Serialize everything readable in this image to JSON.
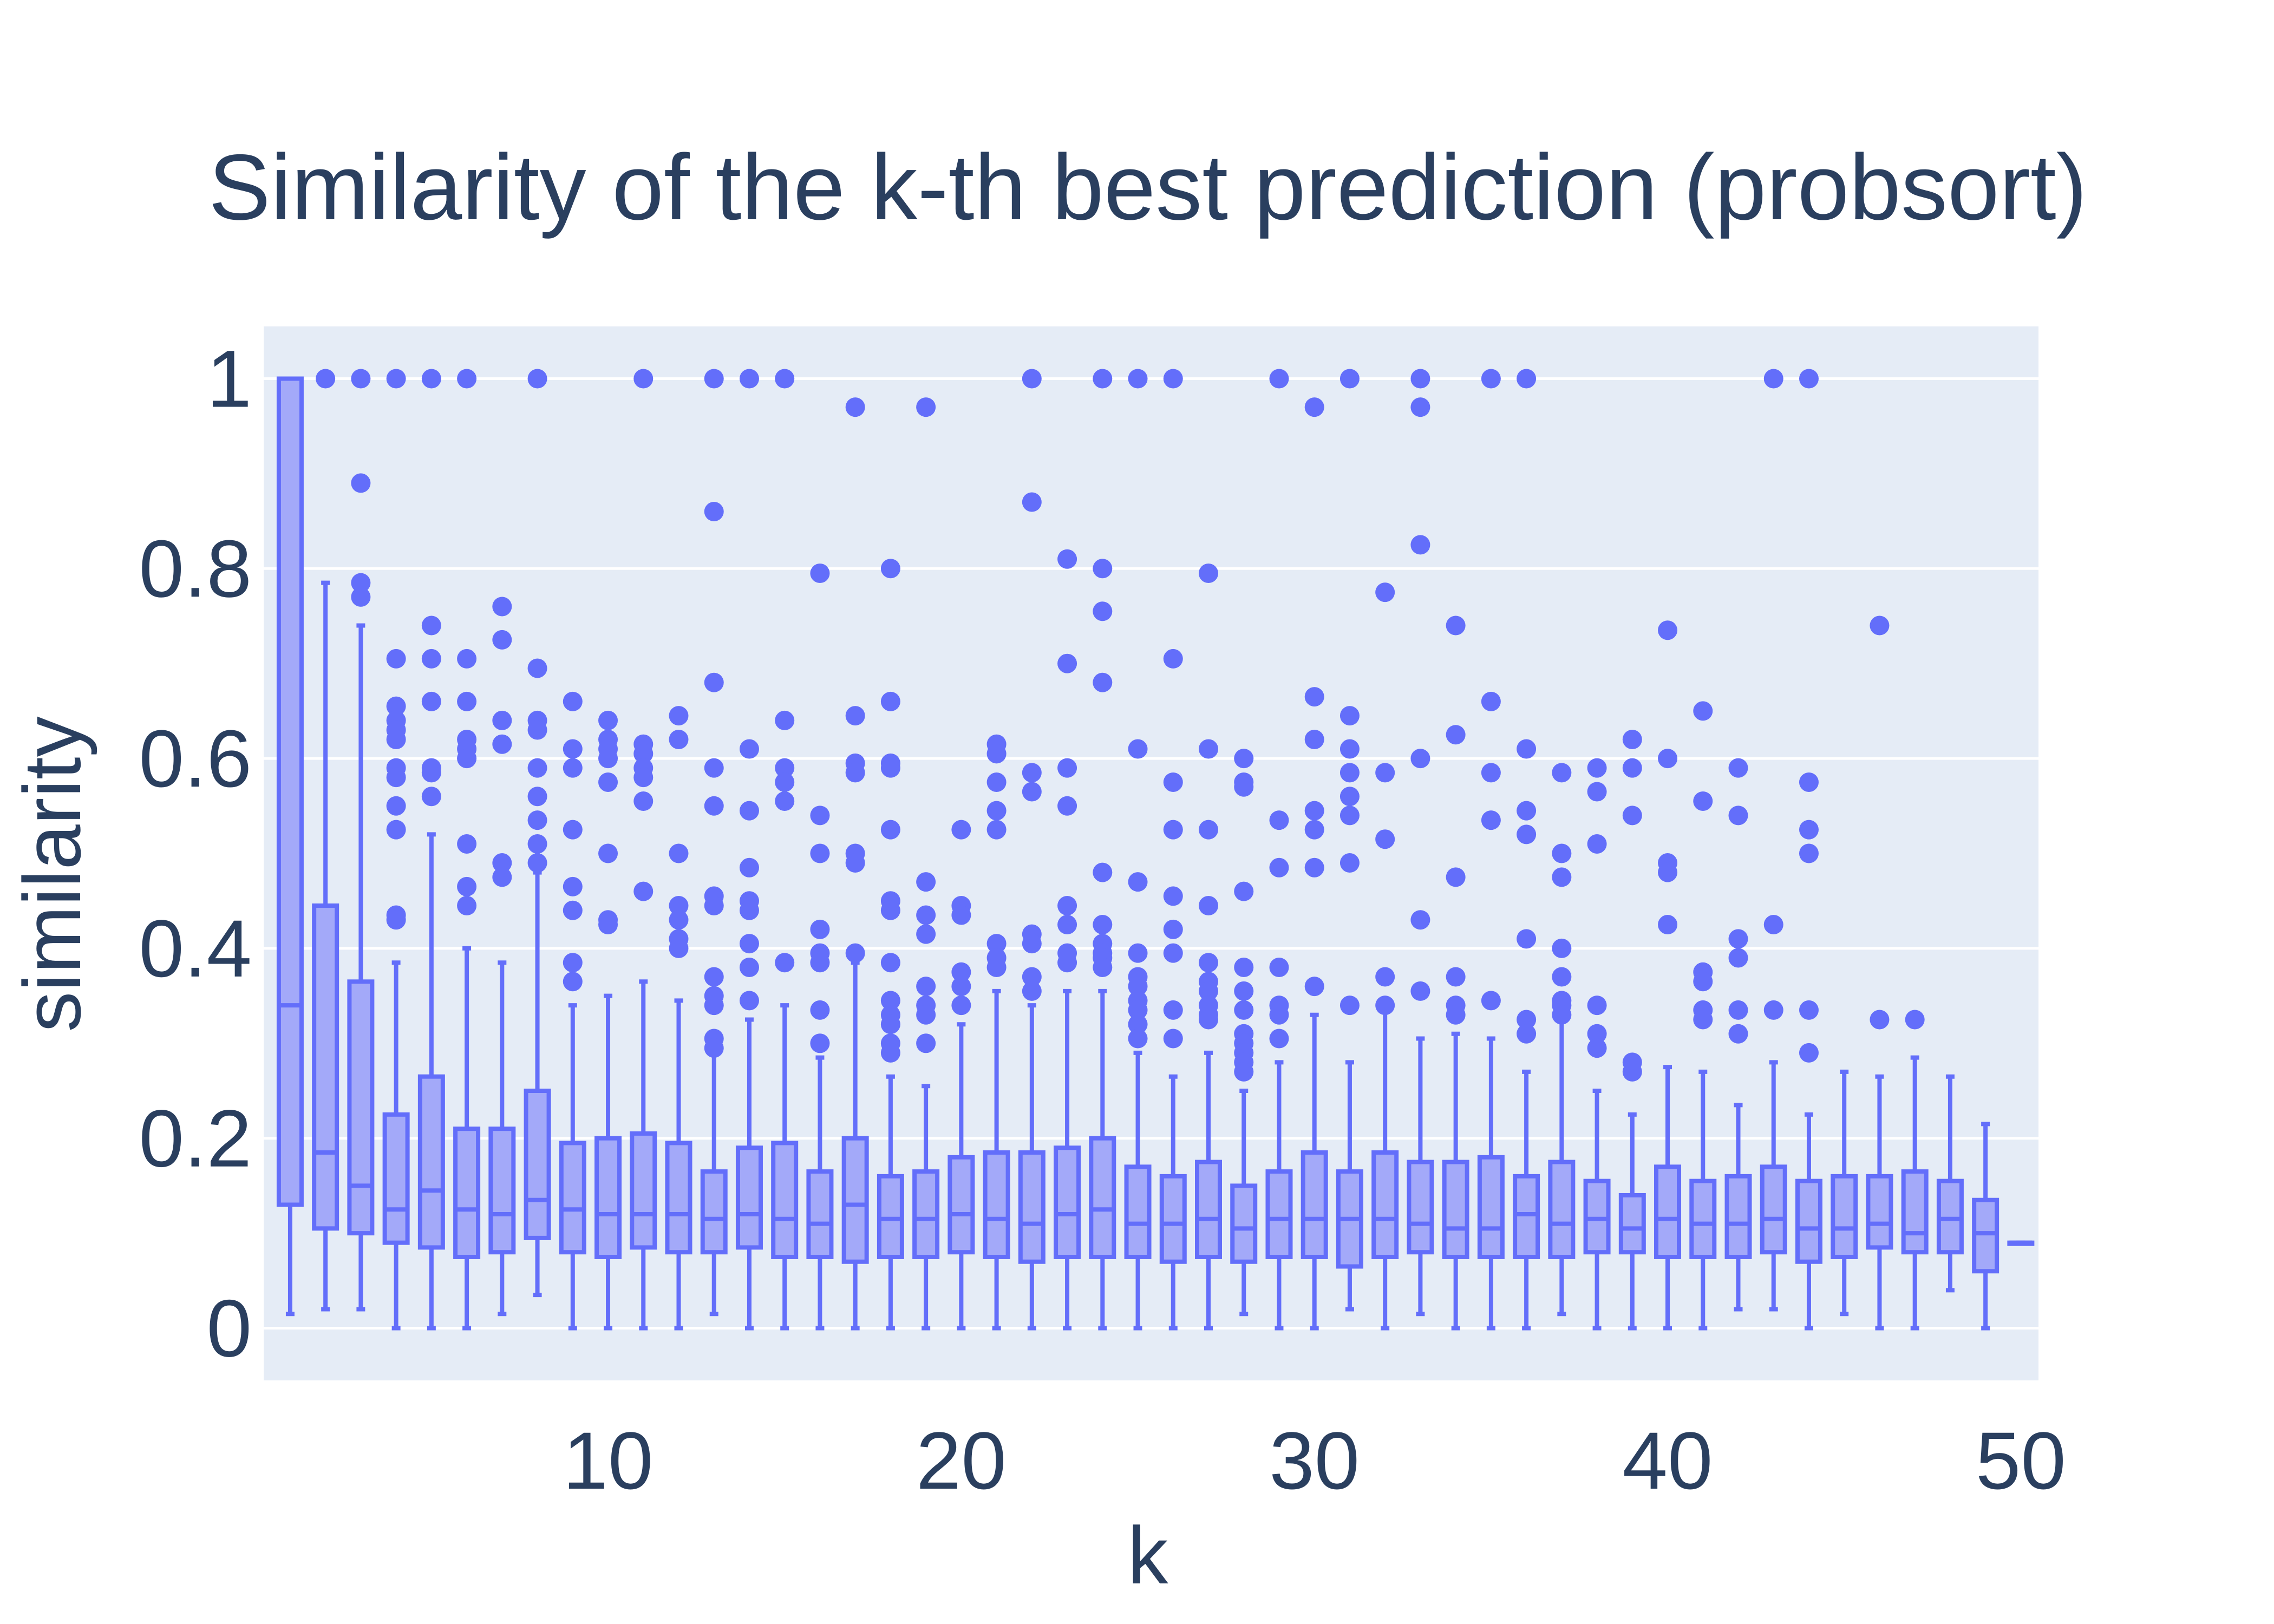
{
  "colors": {
    "plot_bg": "#e5ecf6",
    "grid": "#ffffff",
    "box_line": "#636efa",
    "box_fill": "#a3a9f9",
    "outlier": "#636efa",
    "text": "#2a3f5f"
  },
  "chart_data": {
    "type": "box",
    "title": "Similarity of the k-th best prediction (probsort)",
    "xlabel": "k",
    "ylabel": "similarity",
    "xlim": [
      0.25,
      50.5
    ],
    "ylim": [
      -0.055,
      1.055
    ],
    "x_ticks": [
      10,
      20,
      30,
      40,
      50
    ],
    "y_ticks": [
      0,
      0.2,
      0.4,
      0.6,
      0.8,
      1
    ],
    "y_tick_labels": [
      "0",
      "0.2",
      "0.4",
      "0.6",
      "0.8",
      "1"
    ],
    "grid": true,
    "legend": "none",
    "boxes": [
      {
        "k": 1,
        "min": 0.015,
        "q1": 0.13,
        "median": 0.34,
        "q3": 1.0,
        "max": 1.0,
        "outliers": []
      },
      {
        "k": 2,
        "min": 0.02,
        "q1": 0.105,
        "median": 0.185,
        "q3": 0.445,
        "max": 0.785,
        "outliers": [
          1.0
        ]
      },
      {
        "k": 3,
        "min": 0.02,
        "q1": 0.1,
        "median": 0.15,
        "q3": 0.365,
        "max": 0.74,
        "outliers": [
          1.0,
          0.89,
          0.785,
          0.77
        ]
      },
      {
        "k": 4,
        "min": 0.0,
        "q1": 0.09,
        "median": 0.125,
        "q3": 0.225,
        "max": 0.385,
        "outliers": [
          1.0,
          0.705,
          0.655,
          0.64,
          0.63,
          0.62,
          0.59,
          0.58,
          0.55,
          0.525,
          0.435,
          0.43
        ]
      },
      {
        "k": 5,
        "min": 0.0,
        "q1": 0.085,
        "median": 0.145,
        "q3": 0.265,
        "max": 0.52,
        "outliers": [
          1.0,
          0.74,
          0.705,
          0.66,
          0.59,
          0.585,
          0.56
        ]
      },
      {
        "k": 6,
        "min": 0.0,
        "q1": 0.075,
        "median": 0.125,
        "q3": 0.21,
        "max": 0.4,
        "outliers": [
          1.0,
          0.705,
          0.66,
          0.62,
          0.61,
          0.6,
          0.51,
          0.465,
          0.445
        ]
      },
      {
        "k": 7,
        "min": 0.015,
        "q1": 0.08,
        "median": 0.12,
        "q3": 0.21,
        "max": 0.385,
        "outliers": [
          0.76,
          0.725,
          0.64,
          0.615,
          0.49,
          0.475
        ]
      },
      {
        "k": 8,
        "min": 0.035,
        "q1": 0.095,
        "median": 0.135,
        "q3": 0.25,
        "max": 0.48,
        "outliers": [
          1.0,
          0.695,
          0.64,
          0.63,
          0.59,
          0.56,
          0.535,
          0.51,
          0.49
        ]
      },
      {
        "k": 9,
        "min": 0.0,
        "q1": 0.08,
        "median": 0.125,
        "q3": 0.195,
        "max": 0.34,
        "outliers": [
          0.66,
          0.61,
          0.59,
          0.525,
          0.465,
          0.44,
          0.385,
          0.365
        ]
      },
      {
        "k": 10,
        "min": 0.0,
        "q1": 0.075,
        "median": 0.12,
        "q3": 0.2,
        "max": 0.35,
        "outliers": [
          0.64,
          0.62,
          0.61,
          0.6,
          0.575,
          0.5,
          0.43,
          0.425
        ]
      },
      {
        "k": 11,
        "min": 0.0,
        "q1": 0.085,
        "median": 0.12,
        "q3": 0.205,
        "max": 0.365,
        "outliers": [
          1.0,
          0.615,
          0.605,
          0.59,
          0.58,
          0.555,
          0.46
        ]
      },
      {
        "k": 12,
        "min": 0.0,
        "q1": 0.08,
        "median": 0.12,
        "q3": 0.195,
        "max": 0.345,
        "outliers": [
          0.645,
          0.62,
          0.5,
          0.445,
          0.43,
          0.41,
          0.4
        ]
      },
      {
        "k": 13,
        "min": 0.015,
        "q1": 0.08,
        "median": 0.115,
        "q3": 0.165,
        "max": 0.29,
        "outliers": [
          1.0,
          0.86,
          0.68,
          0.59,
          0.55,
          0.455,
          0.445,
          0.37,
          0.35,
          0.34,
          0.305,
          0.295
        ]
      },
      {
        "k": 14,
        "min": 0.0,
        "q1": 0.085,
        "median": 0.12,
        "q3": 0.19,
        "max": 0.325,
        "outliers": [
          1.0,
          0.61,
          0.545,
          0.485,
          0.45,
          0.44,
          0.405,
          0.38,
          0.345
        ]
      },
      {
        "k": 15,
        "min": 0.0,
        "q1": 0.075,
        "median": 0.115,
        "q3": 0.195,
        "max": 0.34,
        "outliers": [
          1.0,
          0.64,
          0.59,
          0.575,
          0.555,
          0.385
        ]
      },
      {
        "k": 16,
        "min": 0.0,
        "q1": 0.075,
        "median": 0.11,
        "q3": 0.165,
        "max": 0.285,
        "outliers": [
          0.795,
          0.54,
          0.5,
          0.42,
          0.395,
          0.385,
          0.335,
          0.3
        ]
      },
      {
        "k": 17,
        "min": 0.0,
        "q1": 0.07,
        "median": 0.13,
        "q3": 0.2,
        "max": 0.385,
        "outliers": [
          0.97,
          0.645,
          0.595,
          0.585,
          0.5,
          0.49,
          0.395
        ]
      },
      {
        "k": 18,
        "min": 0.0,
        "q1": 0.075,
        "median": 0.115,
        "q3": 0.16,
        "max": 0.265,
        "outliers": [
          0.8,
          0.66,
          0.595,
          0.59,
          0.525,
          0.45,
          0.44,
          0.385,
          0.345,
          0.33,
          0.32,
          0.3,
          0.29
        ]
      },
      {
        "k": 19,
        "min": 0.0,
        "q1": 0.075,
        "median": 0.115,
        "q3": 0.165,
        "max": 0.255,
        "outliers": [
          0.97,
          0.47,
          0.435,
          0.415,
          0.36,
          0.34,
          0.33,
          0.3
        ]
      },
      {
        "k": 20,
        "min": 0.0,
        "q1": 0.08,
        "median": 0.12,
        "q3": 0.18,
        "max": 0.32,
        "outliers": [
          0.525,
          0.445,
          0.435,
          0.375,
          0.36,
          0.34
        ]
      },
      {
        "k": 21,
        "min": 0.0,
        "q1": 0.075,
        "median": 0.115,
        "q3": 0.185,
        "max": 0.355,
        "outliers": [
          0.615,
          0.605,
          0.575,
          0.545,
          0.525,
          0.405,
          0.39,
          0.38
        ]
      },
      {
        "k": 22,
        "min": 0.0,
        "q1": 0.07,
        "median": 0.11,
        "q3": 0.185,
        "max": 0.34,
        "outliers": [
          1.0,
          0.87,
          0.585,
          0.565,
          0.415,
          0.405,
          0.37,
          0.355
        ]
      },
      {
        "k": 23,
        "min": 0.0,
        "q1": 0.075,
        "median": 0.12,
        "q3": 0.19,
        "max": 0.355,
        "outliers": [
          0.81,
          0.7,
          0.59,
          0.55,
          0.445,
          0.425,
          0.395,
          0.385
        ]
      },
      {
        "k": 24,
        "min": 0.0,
        "q1": 0.075,
        "median": 0.125,
        "q3": 0.2,
        "max": 0.355,
        "outliers": [
          1.0,
          0.8,
          0.755,
          0.68,
          0.48,
          0.425,
          0.405,
          0.395,
          0.39,
          0.38
        ]
      },
      {
        "k": 25,
        "min": 0.0,
        "q1": 0.075,
        "median": 0.11,
        "q3": 0.17,
        "max": 0.29,
        "outliers": [
          1.0,
          0.61,
          0.47,
          0.395,
          0.37,
          0.36,
          0.345,
          0.335,
          0.32,
          0.305
        ]
      },
      {
        "k": 26,
        "min": 0.0,
        "q1": 0.07,
        "median": 0.11,
        "q3": 0.16,
        "max": 0.265,
        "outliers": [
          1.0,
          0.705,
          0.575,
          0.525,
          0.455,
          0.42,
          0.395,
          0.335,
          0.305
        ]
      },
      {
        "k": 27,
        "min": 0.0,
        "q1": 0.075,
        "median": 0.115,
        "q3": 0.175,
        "max": 0.29,
        "outliers": [
          0.795,
          0.61,
          0.525,
          0.445,
          0.385,
          0.365,
          0.355,
          0.34,
          0.33,
          0.325
        ]
      },
      {
        "k": 28,
        "min": 0.015,
        "q1": 0.07,
        "median": 0.105,
        "q3": 0.15,
        "max": 0.25,
        "outliers": [
          0.6,
          0.575,
          0.57,
          0.46,
          0.38,
          0.355,
          0.335,
          0.31,
          0.3,
          0.29,
          0.28,
          0.27
        ]
      },
      {
        "k": 29,
        "min": 0.0,
        "q1": 0.075,
        "median": 0.115,
        "q3": 0.165,
        "max": 0.28,
        "outliers": [
          1.0,
          0.535,
          0.485,
          0.38,
          0.34,
          0.33,
          0.305
        ]
      },
      {
        "k": 30,
        "min": 0.0,
        "q1": 0.075,
        "median": 0.115,
        "q3": 0.185,
        "max": 0.33,
        "outliers": [
          0.97,
          0.665,
          0.62,
          0.545,
          0.525,
          0.485,
          0.36
        ]
      },
      {
        "k": 31,
        "min": 0.02,
        "q1": 0.065,
        "median": 0.115,
        "q3": 0.165,
        "max": 0.28,
        "outliers": [
          1.0,
          0.645,
          0.61,
          0.585,
          0.56,
          0.54,
          0.49,
          0.34
        ]
      },
      {
        "k": 32,
        "min": 0.0,
        "q1": 0.075,
        "median": 0.115,
        "q3": 0.185,
        "max": 0.335,
        "outliers": [
          0.775,
          0.585,
          0.515,
          0.37,
          0.34
        ]
      },
      {
        "k": 33,
        "min": 0.015,
        "q1": 0.08,
        "median": 0.11,
        "q3": 0.175,
        "max": 0.305,
        "outliers": [
          1.0,
          0.97,
          0.825,
          0.6,
          0.43,
          0.355
        ]
      },
      {
        "k": 34,
        "min": 0.0,
        "q1": 0.075,
        "median": 0.105,
        "q3": 0.175,
        "max": 0.31,
        "outliers": [
          0.74,
          0.625,
          0.475,
          0.37,
          0.34,
          0.33
        ]
      },
      {
        "k": 35,
        "min": 0.0,
        "q1": 0.075,
        "median": 0.105,
        "q3": 0.18,
        "max": 0.305,
        "outliers": [
          1.0,
          0.66,
          0.585,
          0.535,
          0.345
        ]
      },
      {
        "k": 36,
        "min": 0.0,
        "q1": 0.075,
        "median": 0.12,
        "q3": 0.16,
        "max": 0.27,
        "outliers": [
          1.0,
          0.61,
          0.545,
          0.52,
          0.41,
          0.325,
          0.31
        ]
      },
      {
        "k": 37,
        "min": 0.015,
        "q1": 0.075,
        "median": 0.11,
        "q3": 0.175,
        "max": 0.325,
        "outliers": [
          0.585,
          0.5,
          0.475,
          0.4,
          0.37,
          0.345,
          0.34,
          0.33
        ]
      },
      {
        "k": 38,
        "min": 0.0,
        "q1": 0.08,
        "median": 0.115,
        "q3": 0.155,
        "max": 0.25,
        "outliers": [
          0.59,
          0.565,
          0.51,
          0.34,
          0.31,
          0.295
        ]
      },
      {
        "k": 39,
        "min": 0.0,
        "q1": 0.08,
        "median": 0.105,
        "q3": 0.14,
        "max": 0.225,
        "outliers": [
          0.62,
          0.59,
          0.54,
          0.28,
          0.27
        ]
      },
      {
        "k": 40,
        "min": 0.0,
        "q1": 0.075,
        "median": 0.115,
        "q3": 0.17,
        "max": 0.275,
        "outliers": [
          0.735,
          0.6,
          0.49,
          0.48,
          0.425
        ]
      },
      {
        "k": 41,
        "min": 0.0,
        "q1": 0.075,
        "median": 0.11,
        "q3": 0.155,
        "max": 0.27,
        "outliers": [
          0.65,
          0.555,
          0.375,
          0.365,
          0.335,
          0.325
        ]
      },
      {
        "k": 42,
        "min": 0.02,
        "q1": 0.075,
        "median": 0.11,
        "q3": 0.16,
        "max": 0.235,
        "outliers": [
          0.59,
          0.54,
          0.41,
          0.39,
          0.335,
          0.31
        ]
      },
      {
        "k": 43,
        "min": 0.02,
        "q1": 0.08,
        "median": 0.115,
        "q3": 0.17,
        "max": 0.28,
        "outliers": [
          1.0,
          0.425,
          0.335
        ]
      },
      {
        "k": 44,
        "min": 0.0,
        "q1": 0.07,
        "median": 0.105,
        "q3": 0.155,
        "max": 0.225,
        "outliers": [
          1.0,
          0.575,
          0.525,
          0.5,
          0.335,
          0.29
        ]
      },
      {
        "k": 45,
        "min": 0.015,
        "q1": 0.075,
        "median": 0.105,
        "q3": 0.16,
        "max": 0.27,
        "outliers": []
      },
      {
        "k": 46,
        "min": 0.0,
        "q1": 0.085,
        "median": 0.11,
        "q3": 0.16,
        "max": 0.265,
        "outliers": [
          0.74,
          0.325
        ]
      },
      {
        "k": 47,
        "min": 0.0,
        "q1": 0.08,
        "median": 0.1,
        "q3": 0.165,
        "max": 0.285,
        "outliers": [
          0.325
        ]
      },
      {
        "k": 48,
        "min": 0.04,
        "q1": 0.08,
        "median": 0.115,
        "q3": 0.155,
        "max": 0.265,
        "outliers": []
      },
      {
        "k": 49,
        "min": 0.0,
        "q1": 0.06,
        "median": 0.1,
        "q3": 0.135,
        "max": 0.215,
        "outliers": []
      },
      {
        "k": 50,
        "min": 0.09,
        "q1": 0.09,
        "median": 0.09,
        "q3": 0.09,
        "max": 0.09,
        "outliers": []
      }
    ]
  }
}
